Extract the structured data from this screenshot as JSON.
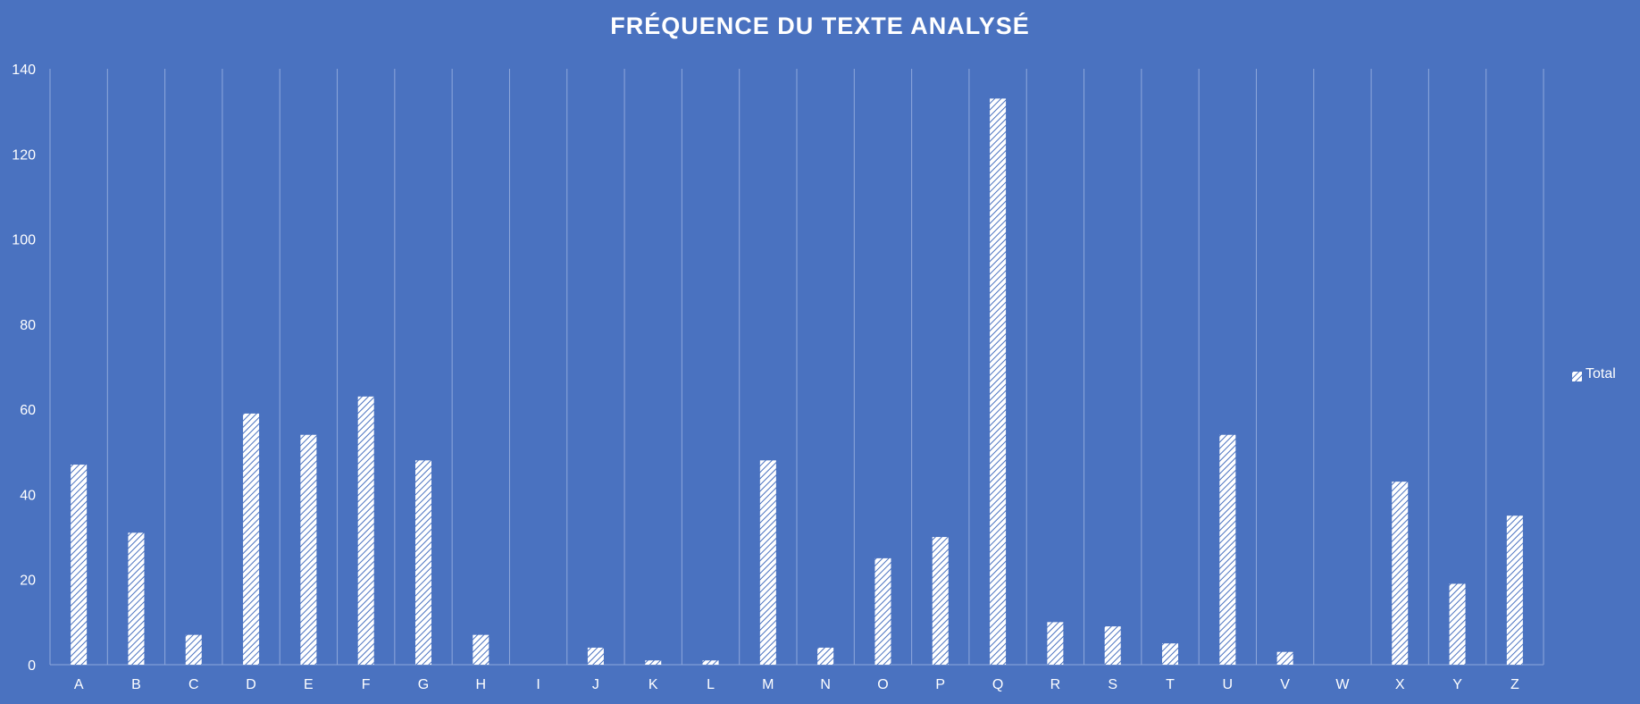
{
  "chart_data": {
    "type": "bar",
    "title": "FRÉQUENCE DU TEXTE ANALYSÉ",
    "categories": [
      "A",
      "B",
      "C",
      "D",
      "E",
      "F",
      "G",
      "H",
      "I",
      "J",
      "K",
      "L",
      "M",
      "N",
      "O",
      "P",
      "Q",
      "R",
      "S",
      "T",
      "U",
      "V",
      "W",
      "X",
      "Y",
      "Z"
    ],
    "series": [
      {
        "name": "Total",
        "values": [
          47,
          31,
          7,
          59,
          54,
          63,
          48,
          7,
          0,
          4,
          1,
          1,
          48,
          4,
          25,
          30,
          133,
          10,
          9,
          5,
          54,
          3,
          0,
          43,
          19,
          35
        ]
      }
    ],
    "ylim": [
      0,
      140
    ],
    "yticks": [
      0,
      20,
      40,
      60,
      80,
      100,
      120,
      140
    ],
    "grid": "vertical",
    "legend_position": "right",
    "colors": {
      "background": "#4a72c0",
      "bar_fill": "#ffffff",
      "bar_hatch": "#4a72c0",
      "gridline": "#8fa8dc",
      "text": "#ffffff"
    }
  }
}
